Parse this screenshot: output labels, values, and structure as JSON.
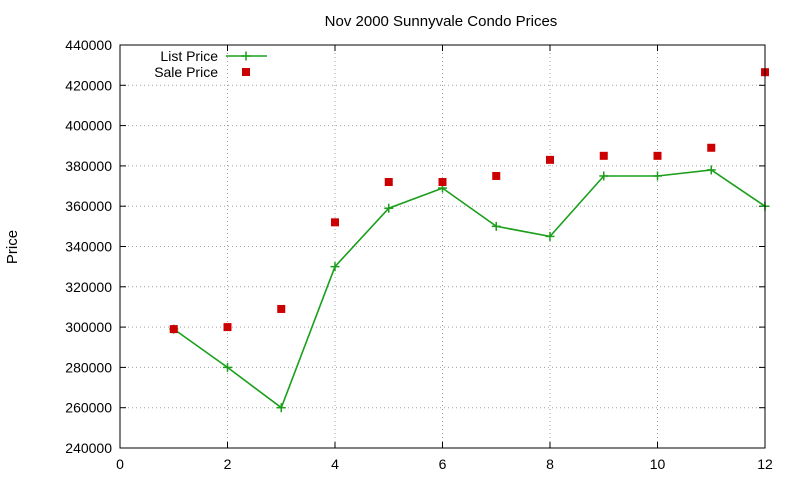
{
  "chart_data": {
    "type": "line",
    "title": "Nov 2000 Sunnyvale Condo Prices",
    "xlabel": "",
    "ylabel": "Price",
    "xlim": [
      0,
      12
    ],
    "ylim": [
      240000,
      440000
    ],
    "xticks": [
      0,
      2,
      4,
      6,
      8,
      10,
      12
    ],
    "yticks": [
      240000,
      260000,
      280000,
      300000,
      320000,
      340000,
      360000,
      380000,
      400000,
      420000,
      440000
    ],
    "grid": true,
    "legend_position": "top-left",
    "series": [
      {
        "name": "List Price",
        "style": "line+points",
        "marker": "plus",
        "color": "#1a9f1a",
        "x": [
          1,
          2,
          3,
          4,
          5,
          6,
          7,
          8,
          9,
          10,
          11,
          12
        ],
        "y": [
          299000,
          280000,
          260000,
          330000,
          359000,
          369000,
          350000,
          345000,
          375000,
          375000,
          378000,
          360000
        ]
      },
      {
        "name": "Sale Price",
        "style": "points",
        "marker": "square",
        "color": "#cc0000",
        "x": [
          1,
          2,
          3,
          4,
          5,
          6,
          7,
          8,
          9,
          10,
          11,
          12
        ],
        "y": [
          299000,
          300000,
          309000,
          352000,
          372000,
          372000,
          375000,
          383000,
          385000,
          385000,
          389000,
          426500
        ]
      }
    ]
  }
}
